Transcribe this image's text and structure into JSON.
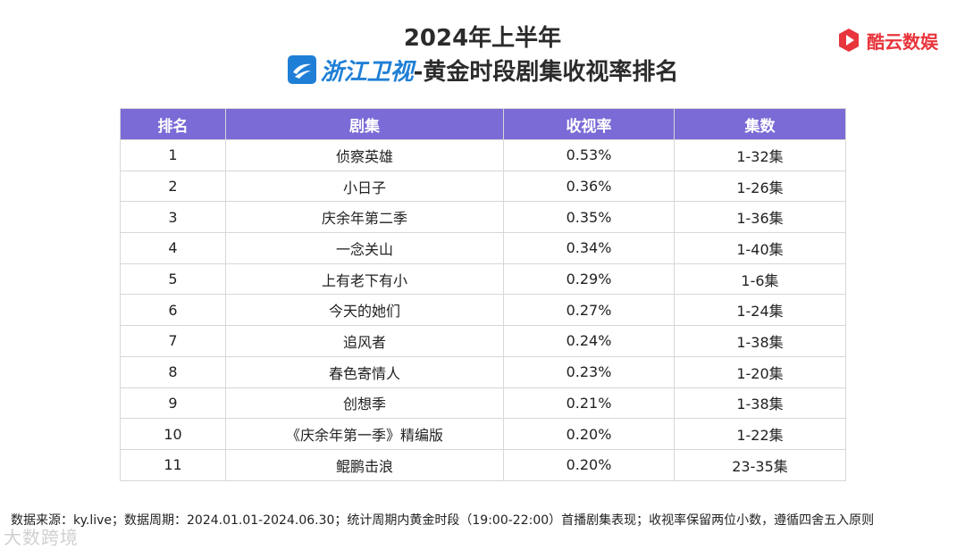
{
  "header": {
    "year_title": "2024年上半年",
    "channel_name": "浙江卫视",
    "main_title": "-黄金时段剧集收视率排名"
  },
  "brand": {
    "name": "酷云数娱",
    "color": "#e8343b"
  },
  "table": {
    "header_color": "#7b6bd6",
    "columns": [
      "排名",
      "剧集",
      "收视率",
      "集数"
    ],
    "rows": [
      [
        "1",
        "侦察英雄",
        "0.53%",
        "1-32集"
      ],
      [
        "2",
        "小日子",
        "0.36%",
        "1-26集"
      ],
      [
        "3",
        "庆余年第二季",
        "0.35%",
        "1-36集"
      ],
      [
        "4",
        "一念关山",
        "0.34%",
        "1-40集"
      ],
      [
        "5",
        "上有老下有小",
        "0.29%",
        "1-6集"
      ],
      [
        "6",
        "今天的她们",
        "0.27%",
        "1-24集"
      ],
      [
        "7",
        "追风者",
        "0.24%",
        "1-38集"
      ],
      [
        "8",
        "春色寄情人",
        "0.23%",
        "1-20集"
      ],
      [
        "9",
        "创想季",
        "0.21%",
        "1-38集"
      ],
      [
        "10",
        "《庆余年第一季》精编版",
        "0.20%",
        "1-22集"
      ],
      [
        "11",
        "鲲鹏击浪",
        "0.20%",
        "23-35集"
      ]
    ]
  },
  "footnote": "数据来源：ky.live；数据周期：2024.01.01-2024.06.30；统计周期内黄金时段（19:00-22:00）首播剧集表现；收视率保留两位小数，遵循四舍五入原则",
  "watermark": "大数跨境",
  "icons": {
    "channel_logo": "zhejiang-tv-logo-icon",
    "brand_logo": "play-hexagon-icon"
  }
}
